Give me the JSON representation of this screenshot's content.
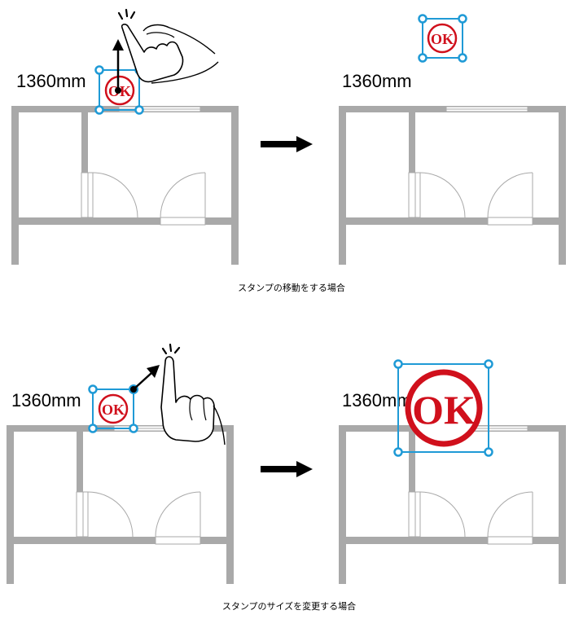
{
  "colors": {
    "wall": "#a9a9a9",
    "stamp": "#d0101c",
    "handle": "#1f9ad6",
    "arrow": "#000000"
  },
  "stamp_text": "OK",
  "icons": [
    "floor-plan",
    "stamp",
    "selection-handle",
    "hand-pointer-icon",
    "arrow-right-icon"
  ],
  "sections": [
    {
      "caption": "スタンプの移動をする場合",
      "before": {
        "dimension": "1360mm"
      },
      "after": {
        "dimension": "1360mm"
      }
    },
    {
      "caption": "スタンプのサイズを変更する場合",
      "before": {
        "dimension": "1360mm"
      },
      "after": {
        "dimension": "1360mm"
      }
    }
  ]
}
